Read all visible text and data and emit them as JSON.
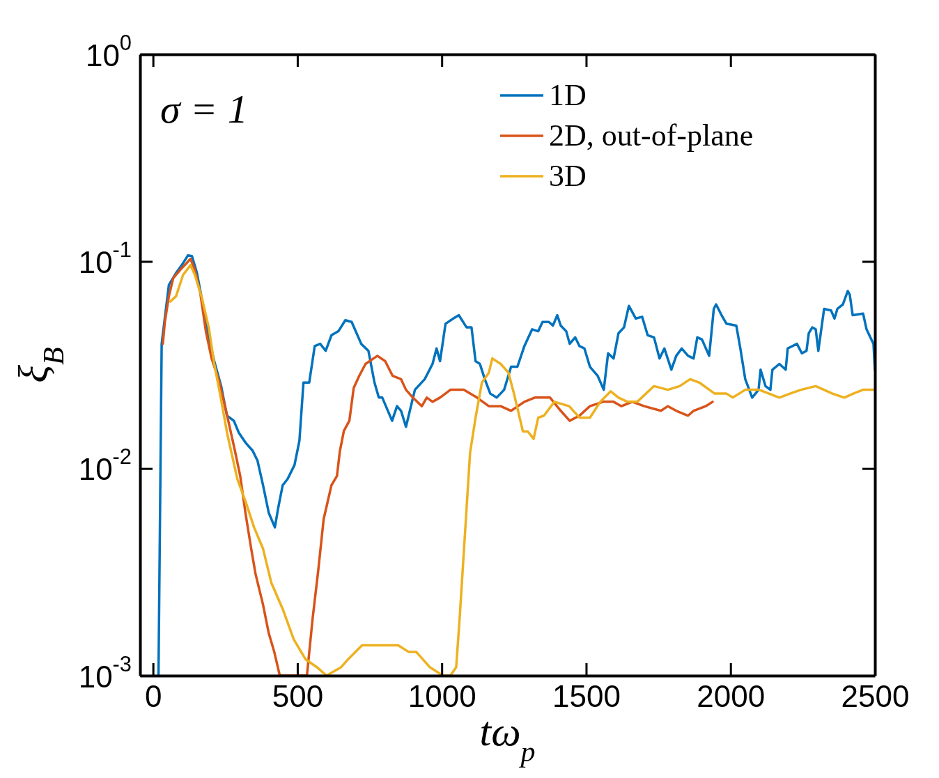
{
  "chart_data": {
    "type": "line",
    "xlabel": "tω$_{p}$",
    "ylabel": "ξ$_{B}$",
    "log": "y",
    "xlim": [
      -45,
      2500
    ],
    "ylim": [
      0.001,
      1
    ],
    "xticks": [
      0,
      500,
      1000,
      1500,
      2000,
      2500
    ],
    "yticks": [
      {
        "value": 0.001,
        "label": "10$^{-3}$"
      },
      {
        "value": 0.01,
        "label": "10$^{-2}$"
      },
      {
        "value": 0.1,
        "label": "10$^{-1}$"
      },
      {
        "value": 1,
        "label": "10$^{0}$"
      }
    ],
    "grid": false,
    "legend": "top right",
    "marker": "none",
    "line_style": "solid",
    "annotations": [
      "σ = 1"
    ],
    "series": [
      {
        "name": "1D",
        "color": "#0072bd",
        "x": [
          19,
          30,
          55,
          80,
          104,
          121,
          135,
          152,
          171,
          193,
          212,
          236,
          256,
          280,
          297,
          321,
          345,
          362,
          381,
          401,
          422,
          434,
          449,
          466,
          490,
          507,
          521,
          541,
          560,
          579,
          598,
          618,
          642,
          666,
          688,
          721,
          746,
          767,
          782,
          794,
          828,
          845,
          859,
          876,
          907,
          941,
          968,
          982,
          994,
          1013,
          1040,
          1059,
          1086,
          1103,
          1117,
          1132,
          1149,
          1168,
          1190,
          1216,
          1240,
          1262,
          1286,
          1313,
          1334,
          1349,
          1371,
          1385,
          1400,
          1412,
          1431,
          1443,
          1462,
          1477,
          1494,
          1513,
          1540,
          1561,
          1576,
          1595,
          1612,
          1631,
          1648,
          1672,
          1694,
          1713,
          1735,
          1754,
          1771,
          1795,
          1812,
          1831,
          1853,
          1872,
          1885,
          1901,
          1926,
          1942,
          1950,
          1969,
          1986,
          2020,
          2034,
          2051,
          2075,
          2097,
          2104,
          2121,
          2138,
          2145,
          2169,
          2191,
          2198,
          2230,
          2247,
          2263,
          2271,
          2283,
          2295,
          2304,
          2324,
          2348,
          2360,
          2370,
          2389,
          2406,
          2413,
          2423,
          2459,
          2471,
          2495,
          2500
        ],
        "values": [
          0.001,
          0.04,
          0.077,
          0.088,
          0.098,
          0.107,
          0.106,
          0.088,
          0.064,
          0.043,
          0.033,
          0.025,
          0.018,
          0.017,
          0.0149,
          0.0133,
          0.0122,
          0.0109,
          0.0083,
          0.0061,
          0.0052,
          0.0065,
          0.0083,
          0.0089,
          0.0104,
          0.0136,
          0.026,
          0.026,
          0.039,
          0.04,
          0.037,
          0.044,
          0.046,
          0.052,
          0.051,
          0.04,
          0.037,
          0.026,
          0.022,
          0.022,
          0.017,
          0.02,
          0.019,
          0.0159,
          0.024,
          0.027,
          0.032,
          0.038,
          0.033,
          0.05,
          0.053,
          0.055,
          0.048,
          0.048,
          0.033,
          0.032,
          0.027,
          0.023,
          0.022,
          0.024,
          0.031,
          0.031,
          0.039,
          0.047,
          0.046,
          0.051,
          0.051,
          0.049,
          0.055,
          0.049,
          0.046,
          0.04,
          0.043,
          0.039,
          0.038,
          0.031,
          0.028,
          0.024,
          0.036,
          0.034,
          0.045,
          0.048,
          0.061,
          0.053,
          0.054,
          0.044,
          0.043,
          0.034,
          0.038,
          0.03,
          0.035,
          0.038,
          0.035,
          0.034,
          0.043,
          0.042,
          0.035,
          0.059,
          0.062,
          0.055,
          0.05,
          0.049,
          0.038,
          0.027,
          0.022,
          0.024,
          0.03,
          0.025,
          0.024,
          0.03,
          0.032,
          0.03,
          0.038,
          0.04,
          0.036,
          0.037,
          0.045,
          0.048,
          0.047,
          0.037,
          0.059,
          0.058,
          0.053,
          0.059,
          0.062,
          0.072,
          0.069,
          0.055,
          0.056,
          0.047,
          0.04,
          0.03
        ]
      },
      {
        "name": "2D, out-of-plane",
        "color": "#d95319",
        "x": [
          34,
          41,
          55,
          70,
          94,
          113,
          130,
          145,
          164,
          183,
          203,
          227,
          253,
          282,
          302,
          321,
          340,
          355,
          381,
          401,
          420,
          439,
          533,
          553,
          572,
          591,
          618,
          637,
          647,
          661,
          680,
          695,
          714,
          736,
          777,
          804,
          830,
          859,
          876,
          900,
          931,
          948,
          968,
          994,
          1030,
          1076,
          1122,
          1163,
          1204,
          1240,
          1286,
          1322,
          1375,
          1412,
          1443,
          1477,
          1513,
          1559,
          1595,
          1622,
          1660,
          1701,
          1759,
          1783,
          1812,
          1853,
          1872,
          1914,
          1938
        ],
        "values": [
          0.04,
          0.051,
          0.068,
          0.083,
          0.091,
          0.097,
          0.103,
          0.091,
          0.07,
          0.046,
          0.034,
          0.027,
          0.019,
          0.0125,
          0.0092,
          0.006,
          0.0041,
          0.0031,
          0.0022,
          0.0016,
          0.0013,
          0.001,
          0.001,
          0.0019,
          0.0032,
          0.0057,
          0.0083,
          0.0092,
          0.0121,
          0.0152,
          0.017,
          0.0245,
          0.028,
          0.032,
          0.035,
          0.033,
          0.028,
          0.027,
          0.024,
          0.022,
          0.02,
          0.022,
          0.021,
          0.022,
          0.024,
          0.024,
          0.022,
          0.02,
          0.02,
          0.019,
          0.021,
          0.022,
          0.022,
          0.019,
          0.017,
          0.018,
          0.02,
          0.021,
          0.021,
          0.02,
          0.021,
          0.02,
          0.019,
          0.02,
          0.019,
          0.018,
          0.019,
          0.02,
          0.021
        ]
      },
      {
        "name": "3D",
        "color": "#edb120",
        "x": [
          60,
          80,
          104,
          130,
          145,
          169,
          193,
          212,
          232,
          258,
          292,
          321,
          350,
          381,
          410,
          449,
          487,
          528,
          567,
          601,
          652,
          676,
          724,
          755,
          794,
          849,
          886,
          912,
          958,
          1004,
          1030,
          1050,
          1062,
          1081,
          1098,
          1117,
          1139,
          1163,
          1175,
          1204,
          1231,
          1250,
          1281,
          1298,
          1318,
          1334,
          1354,
          1390,
          1441,
          1477,
          1513,
          1549,
          1585,
          1612,
          1643,
          1677,
          1735,
          1783,
          1824,
          1860,
          1892,
          1945,
          1986,
          2008,
          2051,
          2099,
          2133,
          2169,
          2206,
          2244,
          2295,
          2353,
          2394,
          2425,
          2459,
          2500
        ],
        "values": [
          0.064,
          0.068,
          0.086,
          0.096,
          0.086,
          0.067,
          0.048,
          0.032,
          0.023,
          0.0145,
          0.0089,
          0.0069,
          0.0052,
          0.0041,
          0.0028,
          0.0021,
          0.0015,
          0.0012,
          0.0011,
          0.001,
          0.0011,
          0.0012,
          0.0014,
          0.0014,
          0.0014,
          0.0014,
          0.0013,
          0.0013,
          0.0011,
          0.001,
          0.001,
          0.0011,
          0.0019,
          0.005,
          0.0119,
          0.0176,
          0.026,
          0.029,
          0.034,
          0.032,
          0.029,
          0.023,
          0.0151,
          0.0151,
          0.0139,
          0.0176,
          0.018,
          0.021,
          0.02,
          0.0176,
          0.0176,
          0.021,
          0.0236,
          0.022,
          0.021,
          0.021,
          0.025,
          0.024,
          0.025,
          0.027,
          0.026,
          0.023,
          0.023,
          0.022,
          0.024,
          0.024,
          0.023,
          0.022,
          0.023,
          0.024,
          0.025,
          0.023,
          0.022,
          0.023,
          0.024,
          0.024
        ]
      }
    ]
  }
}
